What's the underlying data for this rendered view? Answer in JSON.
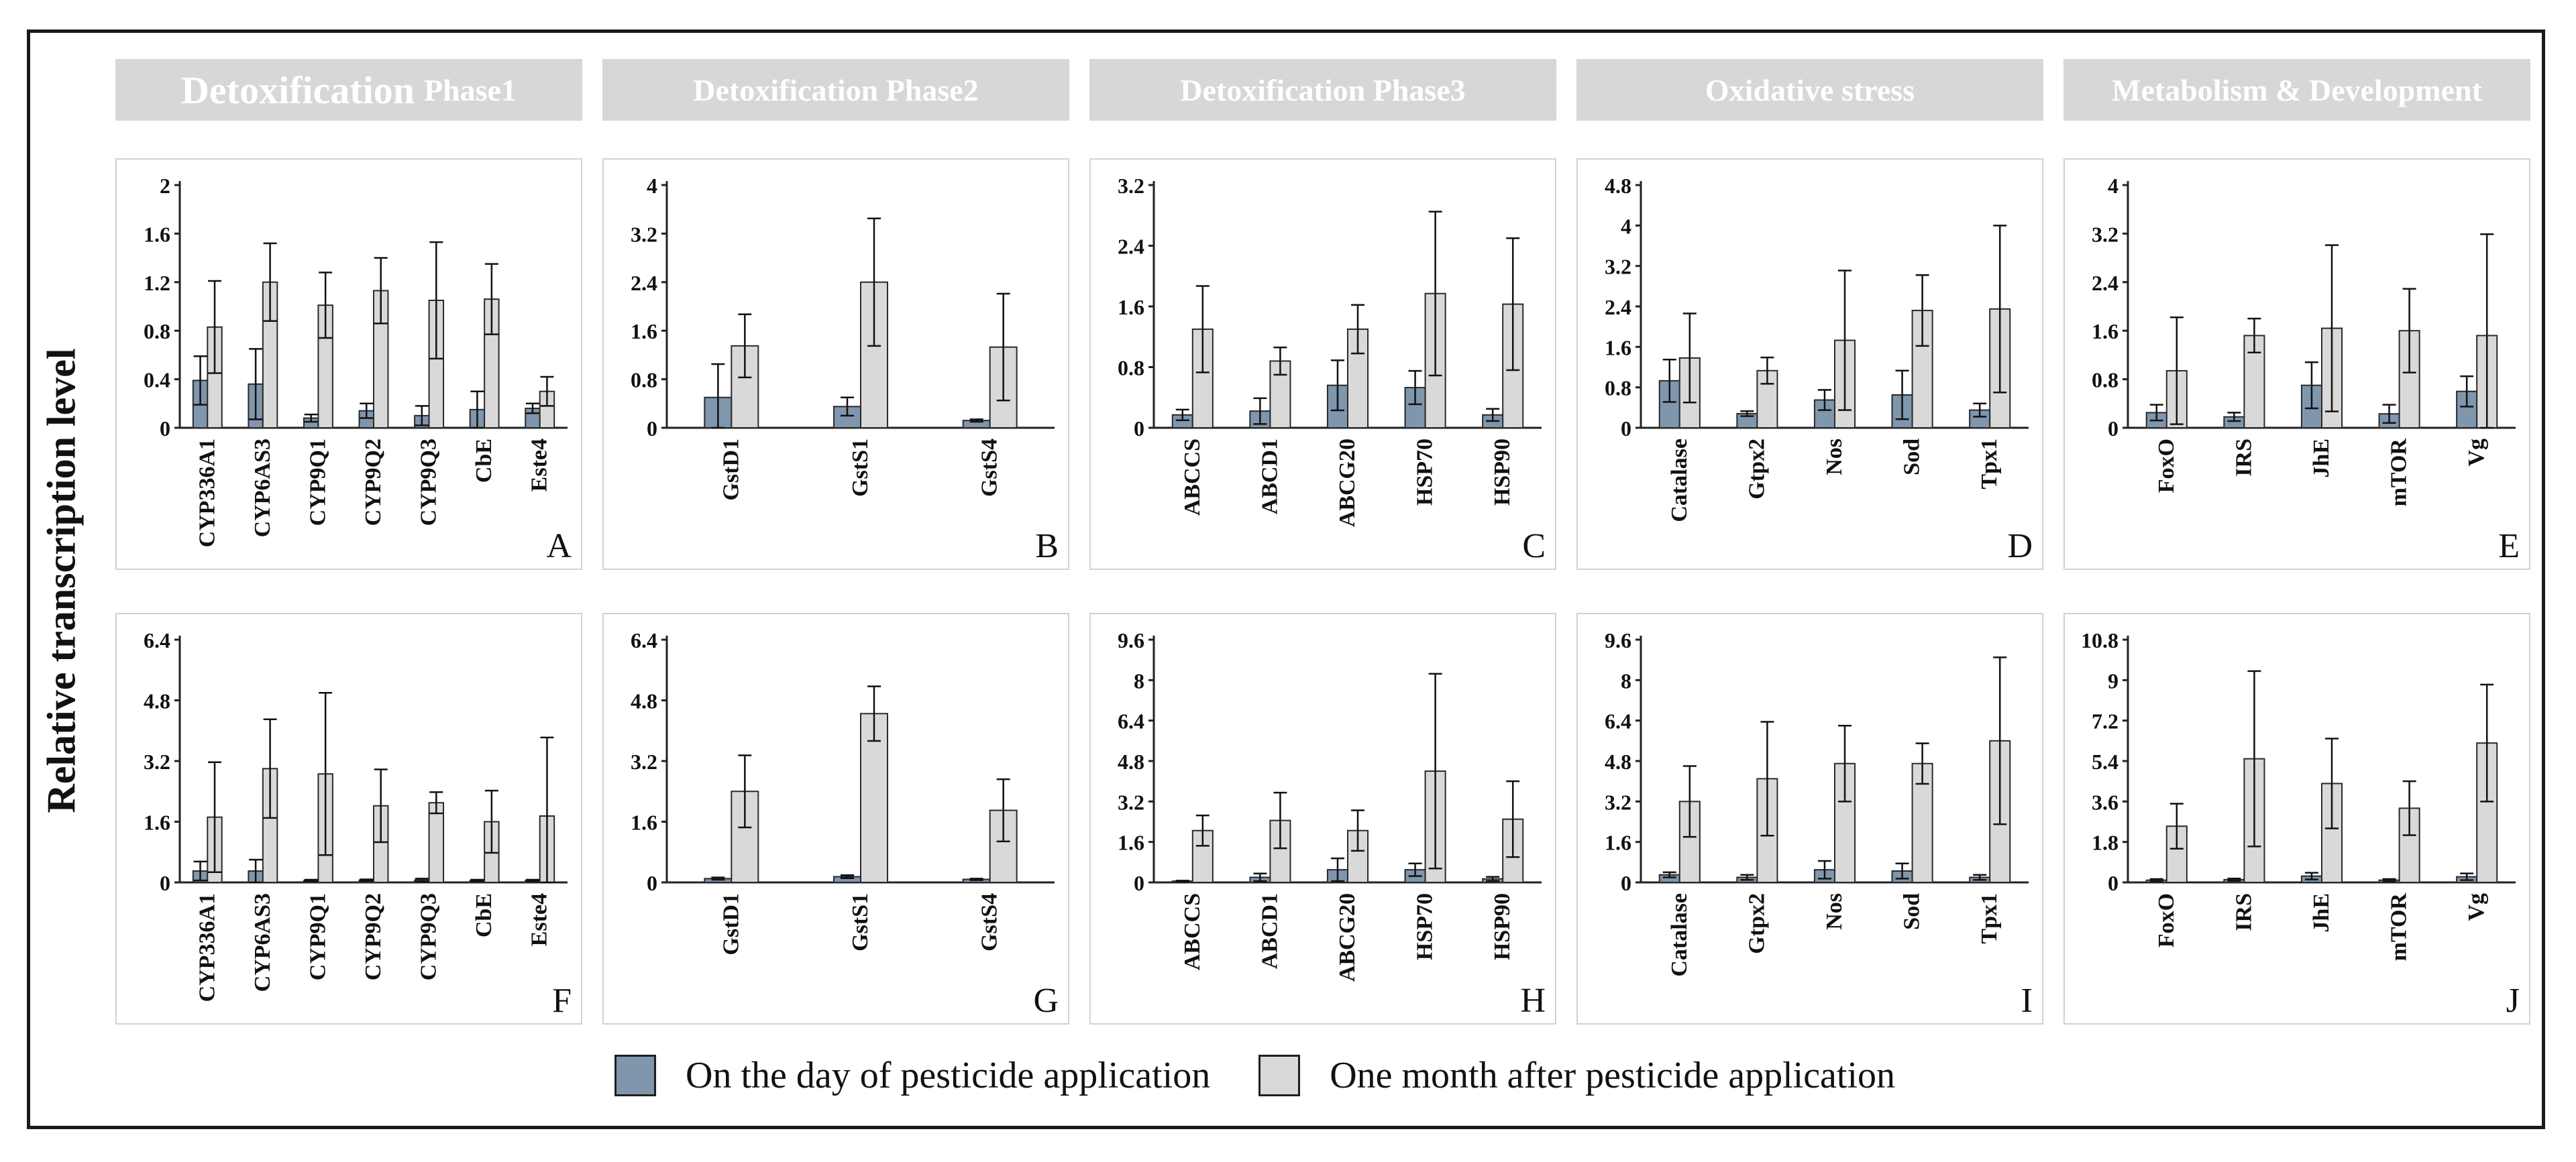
{
  "y_axis_label": "Relative transcription level",
  "headers": [
    {
      "big": "Detoxification",
      "small": "Phase1"
    },
    {
      "big": "",
      "small": "Detoxification Phase2"
    },
    {
      "big": "",
      "small": "Detoxification Phase3"
    },
    {
      "big": "",
      "small": "Oxidative stress"
    },
    {
      "big": "",
      "small": "Metabolism & Development"
    }
  ],
  "legend": {
    "day": {
      "label": "On the day of pesticide application",
      "color": "#7f96ad"
    },
    "month": {
      "label": "One month after pesticide application",
      "color": "#d9d9d9"
    }
  },
  "chart_data": [
    {
      "panel": "A",
      "type": "bar",
      "categories": [
        "CYP336A1",
        "CYP6AS3",
        "CYP9Q1",
        "CYP9Q2",
        "CYP9Q3",
        "CbE",
        "Este4"
      ],
      "ylim": [
        0,
        2
      ],
      "yticks": [
        "0",
        "0.4",
        "0.8",
        "1.2",
        "1.6",
        "2"
      ],
      "series": [
        {
          "name": "On the day of pesticide application",
          "values": [
            0.39,
            0.36,
            0.08,
            0.14,
            0.1,
            0.15,
            0.16
          ],
          "errors": [
            0.2,
            0.29,
            0.03,
            0.06,
            0.08,
            0.15,
            0.04
          ]
        },
        {
          "name": "One month after pesticide application",
          "values": [
            0.83,
            1.2,
            1.01,
            1.13,
            1.05,
            1.06,
            0.3
          ],
          "errors": [
            0.38,
            0.32,
            0.27,
            0.27,
            0.48,
            0.29,
            0.12
          ]
        }
      ]
    },
    {
      "panel": "B",
      "type": "bar",
      "categories": [
        "GstD1",
        "GstS1",
        "GstS4"
      ],
      "ylim": [
        0,
        4
      ],
      "yticks": [
        "0",
        "0.8",
        "1.6",
        "2.4",
        "3.2",
        "4"
      ],
      "series": [
        {
          "name": "On the day of pesticide application",
          "values": [
            0.5,
            0.35,
            0.12
          ],
          "errors": [
            0.55,
            0.15,
            0.02
          ]
        },
        {
          "name": "One month after pesticide application",
          "values": [
            1.35,
            2.4,
            1.33
          ],
          "errors": [
            0.52,
            1.05,
            0.88
          ]
        }
      ]
    },
    {
      "panel": "C",
      "type": "bar",
      "categories": [
        "ABCCS",
        "ABCD1",
        "ABCG20",
        "HSP70",
        "HSP90"
      ],
      "ylim": [
        0,
        3.2
      ],
      "yticks": [
        "0",
        "0.8",
        "1.6",
        "2.4",
        "3.2"
      ],
      "series": [
        {
          "name": "On the day of pesticide application",
          "values": [
            0.17,
            0.22,
            0.56,
            0.53,
            0.17
          ],
          "errors": [
            0.07,
            0.17,
            0.33,
            0.22,
            0.08
          ]
        },
        {
          "name": "One month after pesticide application",
          "values": [
            1.3,
            0.88,
            1.3,
            1.77,
            1.63
          ],
          "errors": [
            0.57,
            0.18,
            0.32,
            1.08,
            0.87
          ]
        }
      ]
    },
    {
      "panel": "D",
      "type": "bar",
      "categories": [
        "Catalase",
        "Gtpx2",
        "Nos",
        "Sod",
        "Tpx1"
      ],
      "ylim": [
        0,
        4.8
      ],
      "yticks": [
        "0",
        "0.8",
        "1.6",
        "2.4",
        "3.2",
        "4",
        "4.8"
      ],
      "series": [
        {
          "name": "On the day of pesticide application",
          "values": [
            0.93,
            0.28,
            0.55,
            0.65,
            0.35
          ],
          "errors": [
            0.42,
            0.05,
            0.2,
            0.48,
            0.13
          ]
        },
        {
          "name": "One month after pesticide application",
          "values": [
            1.38,
            1.13,
            1.73,
            2.32,
            2.35
          ],
          "errors": [
            0.88,
            0.26,
            1.38,
            0.7,
            1.65
          ]
        }
      ]
    },
    {
      "panel": "E",
      "type": "bar",
      "categories": [
        "FoxO",
        "IRS",
        "JhE",
        "mTOR",
        "Vg"
      ],
      "ylim": [
        0,
        4
      ],
      "yticks": [
        "0",
        "0.8",
        "1.6",
        "2.4",
        "3.2",
        "4"
      ],
      "series": [
        {
          "name": "On the day of pesticide application",
          "values": [
            0.25,
            0.18,
            0.7,
            0.23,
            0.6
          ],
          "errors": [
            0.13,
            0.07,
            0.38,
            0.15,
            0.25
          ]
        },
        {
          "name": "One month after pesticide application",
          "values": [
            0.94,
            1.52,
            1.64,
            1.6,
            1.52
          ],
          "errors": [
            0.88,
            0.28,
            1.37,
            0.69,
            1.67
          ]
        }
      ]
    },
    {
      "panel": "F",
      "type": "bar",
      "categories": [
        "CYP336A1",
        "CYP6AS3",
        "CYP9Q1",
        "CYP9Q2",
        "CYP9Q3",
        "CbE",
        "Este4"
      ],
      "ylim": [
        0,
        6.4
      ],
      "yticks": [
        "0",
        "1.6",
        "3.2",
        "4.8",
        "6.4"
      ],
      "series": [
        {
          "name": "On the day of pesticide application",
          "values": [
            0.3,
            0.3,
            0.05,
            0.06,
            0.06,
            0.05,
            0.05
          ],
          "errors": [
            0.25,
            0.3,
            0.02,
            0.02,
            0.04,
            0.02,
            0.02
          ]
        },
        {
          "name": "One month after pesticide application",
          "values": [
            1.72,
            3.0,
            2.86,
            2.02,
            2.1,
            1.6,
            1.75
          ],
          "errors": [
            1.45,
            1.3,
            2.14,
            0.96,
            0.28,
            0.82,
            2.07
          ]
        }
      ]
    },
    {
      "panel": "G",
      "type": "bar",
      "categories": [
        "GstD1",
        "GstS1",
        "GstS4"
      ],
      "ylim": [
        0,
        6.4
      ],
      "yticks": [
        "0",
        "1.6",
        "3.2",
        "4.8",
        "6.4"
      ],
      "series": [
        {
          "name": "On the day of pesticide application",
          "values": [
            0.1,
            0.15,
            0.08
          ],
          "errors": [
            0.03,
            0.04,
            0.02
          ]
        },
        {
          "name": "One month after pesticide application",
          "values": [
            2.4,
            4.45,
            1.9
          ],
          "errors": [
            0.95,
            0.72,
            0.82
          ]
        }
      ]
    },
    {
      "panel": "H",
      "type": "bar",
      "categories": [
        "ABCCS",
        "ABCD1",
        "ABCG20",
        "HSP70",
        "HSP90"
      ],
      "ylim": [
        0,
        9.6
      ],
      "yticks": [
        "0",
        "1.6",
        "3.2",
        "4.8",
        "6.4",
        "8",
        "9.6"
      ],
      "series": [
        {
          "name": "On the day of pesticide application",
          "values": [
            0.05,
            0.2,
            0.5,
            0.5,
            0.14
          ],
          "errors": [
            0.02,
            0.15,
            0.45,
            0.25,
            0.08
          ]
        },
        {
          "name": "One month after pesticide application",
          "values": [
            2.05,
            2.45,
            2.05,
            4.4,
            2.5
          ],
          "errors": [
            0.6,
            1.1,
            0.8,
            3.85,
            1.5
          ]
        }
      ]
    },
    {
      "panel": "I",
      "type": "bar",
      "categories": [
        "Catalase",
        "Gtpx2",
        "Nos",
        "Sod",
        "Tpx1"
      ],
      "ylim": [
        0,
        9.6
      ],
      "yticks": [
        "0",
        "1.6",
        "3.2",
        "4.8",
        "6.4",
        "8",
        "9.6"
      ],
      "series": [
        {
          "name": "On the day of pesticide application",
          "values": [
            0.3,
            0.2,
            0.5,
            0.45,
            0.2
          ],
          "errors": [
            0.1,
            0.1,
            0.35,
            0.3,
            0.1
          ]
        },
        {
          "name": "One month after pesticide application",
          "values": [
            3.2,
            4.1,
            4.7,
            4.7,
            5.6
          ],
          "errors": [
            1.4,
            2.25,
            1.5,
            0.8,
            3.3
          ]
        }
      ]
    },
    {
      "panel": "J",
      "type": "bar",
      "categories": [
        "FoxO",
        "IRS",
        "JhE",
        "mTOR",
        "Vg"
      ],
      "ylim": [
        0,
        10.8
      ],
      "yticks": [
        "0",
        "1.8",
        "3.6",
        "5.4",
        "7.2",
        "9",
        "10.8"
      ],
      "series": [
        {
          "name": "On the day of pesticide application",
          "values": [
            0.1,
            0.12,
            0.28,
            0.1,
            0.25
          ],
          "errors": [
            0.05,
            0.05,
            0.15,
            0.05,
            0.15
          ]
        },
        {
          "name": "One month after pesticide application",
          "values": [
            2.5,
            5.5,
            4.4,
            3.3,
            6.2
          ],
          "errors": [
            1.0,
            3.9,
            2.0,
            1.2,
            2.6
          ]
        }
      ]
    }
  ]
}
